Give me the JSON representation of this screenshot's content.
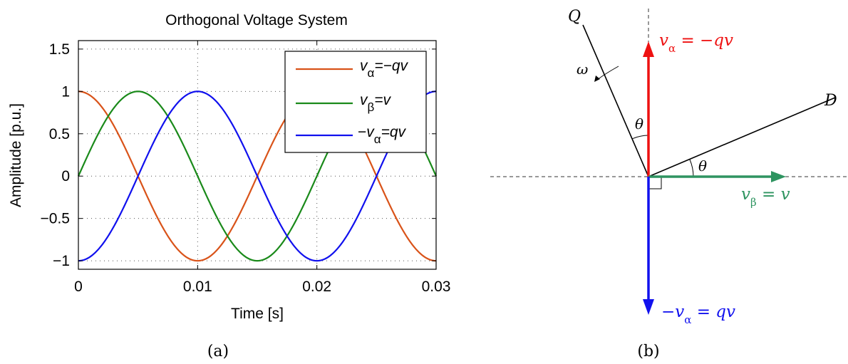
{
  "chart_data": [
    {
      "type": "line",
      "title": "Orthogonal Voltage System",
      "xlabel": "Time [s]",
      "ylabel": "Amplitude [p.u.]",
      "xlim": [
        0,
        0.03
      ],
      "ylim": [
        -1.1,
        1.6
      ],
      "xticks": [
        0,
        0.01,
        0.02,
        0.03
      ],
      "xtick_labels": [
        "0",
        "0.01",
        "0.02",
        "0.03"
      ],
      "yticks": [
        -1,
        -0.5,
        0,
        0.5,
        1,
        1.5
      ],
      "ytick_labels": [
        "−1",
        "−0.5",
        "0",
        "0.5",
        "1",
        "1.5"
      ],
      "grid": true,
      "legend_position": "top-right",
      "frequency_hz": 50,
      "series": [
        {
          "name": "vα=−qv",
          "color": "#d95319",
          "function": "cos(2π·50·t)"
        },
        {
          "name": "vβ=v",
          "color": "#1a8a1a",
          "function": "sin(2π·50·t)"
        },
        {
          "name": "−vα=qv",
          "color": "#1010ee",
          "function": "−cos(2π·50·t)"
        }
      ],
      "legend": [
        {
          "pre": "",
          "v": "v",
          "sub": "α",
          "post": "=−qv"
        },
        {
          "pre": "",
          "v": "v",
          "sub": "β",
          "post": "=v"
        },
        {
          "pre": "−",
          "v": "v",
          "sub": "α",
          "post": "=qv"
        }
      ],
      "caption": "(a)"
    },
    {
      "type": "diagram",
      "axes_labels": {
        "Q": "Q",
        "D": "D",
        "omega": "ω",
        "theta": "θ"
      },
      "vectors": [
        {
          "pre": "v",
          "sub": "α",
          "post": " = −qv",
          "color": "#ee1111",
          "direction": "up"
        },
        {
          "pre": "v",
          "sub": "β",
          "post": " = v",
          "color": "#2e9460",
          "direction": "right"
        },
        {
          "pre": "−v",
          "sub": "α",
          "post": " = qv",
          "color": "#1111ee",
          "direction": "down"
        }
      ],
      "caption": "(b)"
    }
  ]
}
